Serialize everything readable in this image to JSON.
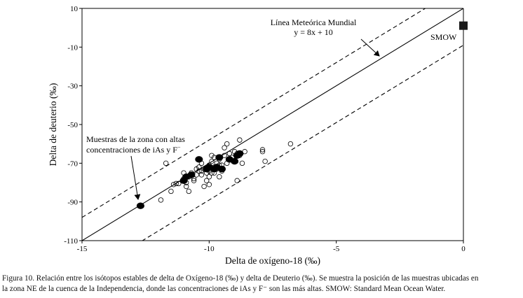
{
  "chart_data": {
    "type": "scatter",
    "xlabel": "Delta de oxígeno-18 (‰)",
    "ylabel": "Delta de deuterio (‰)",
    "xlim": [
      -15,
      0
    ],
    "ylim": [
      -110,
      10
    ],
    "x_ticks": [
      -15,
      -10,
      -5,
      0
    ],
    "x_tick_labels": [
      "-15",
      "-10",
      "-5",
      "0"
    ],
    "y_ticks": [
      10,
      -10,
      -30,
      -50,
      -70,
      -90,
      -110
    ],
    "y_tick_labels": [
      "10",
      "-10",
      "-30",
      "-50",
      "-70",
      "-90",
      "-110"
    ],
    "grid": false,
    "lines": [
      {
        "name": "meteoric",
        "style": "solid",
        "slope": 8,
        "intercept": 10
      },
      {
        "name": "upper-bound",
        "style": "dashed",
        "slope": 8,
        "intercept": 22
      },
      {
        "name": "lower-bound",
        "style": "dashed",
        "slope": 8,
        "intercept": -9
      }
    ],
    "annotations": {
      "lmm_line1": "Línea Meteórica Mundial",
      "lmm_line2": "y = 8x + 10",
      "smow": "SMOW",
      "muestras_line1": "Muestras de la zona con altas",
      "muestras_line2": "concentraciones de iAs y F",
      "muestras_sup": "−"
    },
    "smow_point": {
      "x": 0,
      "y": 0
    },
    "series": [
      {
        "marker": "open-circle",
        "points": [
          [
            -11.7,
            -70
          ],
          [
            -11.4,
            -81
          ],
          [
            -11.5,
            -84.5
          ],
          [
            -11.9,
            -89
          ],
          [
            -11.2,
            -80.5
          ],
          [
            -11.3,
            -80.5
          ],
          [
            -11.0,
            -75
          ],
          [
            -11.0,
            -78
          ],
          [
            -10.9,
            -82
          ],
          [
            -10.9,
            -80
          ],
          [
            -10.8,
            -77
          ],
          [
            -10.8,
            -84.5
          ],
          [
            -10.7,
            -75
          ],
          [
            -10.6,
            -78
          ],
          [
            -10.5,
            -76
          ],
          [
            -10.4,
            -74
          ],
          [
            -10.4,
            -72
          ],
          [
            -10.3,
            -70
          ],
          [
            -10.3,
            -76
          ],
          [
            -10.2,
            -73
          ],
          [
            -10.2,
            -82
          ],
          [
            -10.1,
            -75
          ],
          [
            -10.1,
            -79
          ],
          [
            -10.0,
            -81
          ],
          [
            -10.0,
            -71
          ],
          [
            -10.0,
            -74
          ],
          [
            -9.9,
            -66
          ],
          [
            -9.9,
            -69
          ],
          [
            -9.8,
            -67
          ],
          [
            -9.8,
            -72
          ],
          [
            -9.8,
            -75
          ],
          [
            -9.7,
            -70
          ],
          [
            -9.7,
            -73
          ],
          [
            -9.6,
            -68
          ],
          [
            -9.6,
            -77
          ],
          [
            -9.5,
            -74
          ],
          [
            -9.5,
            -71
          ],
          [
            -9.4,
            -62
          ],
          [
            -9.4,
            -66
          ],
          [
            -9.3,
            -60
          ],
          [
            -9.3,
            -70
          ],
          [
            -9.2,
            -65
          ],
          [
            -9.1,
            -67
          ],
          [
            -9.0,
            -64
          ],
          [
            -8.9,
            -65
          ],
          [
            -8.9,
            -79
          ],
          [
            -8.8,
            -58
          ],
          [
            -8.8,
            -66
          ],
          [
            -8.7,
            -70
          ],
          [
            -8.6,
            -64
          ],
          [
            -7.9,
            -63
          ],
          [
            -7.8,
            -69
          ],
          [
            -7.9,
            -64
          ],
          [
            -6.8,
            -60
          ],
          [
            -10.5,
            -73
          ],
          [
            -10.3,
            -74
          ],
          [
            -10.6,
            -79
          ],
          [
            -10.0,
            -77
          ],
          [
            -9.9,
            -75
          ],
          [
            -9.6,
            -71
          ]
        ]
      },
      {
        "marker": "filled-circle",
        "points": [
          [
            -12.7,
            -92
          ],
          [
            -11.0,
            -79
          ],
          [
            -10.9,
            -77
          ],
          [
            -10.7,
            -76
          ],
          [
            -10.4,
            -68
          ],
          [
            -10.0,
            -72
          ],
          [
            -9.8,
            -73
          ],
          [
            -9.7,
            -72
          ],
          [
            -9.6,
            -67
          ],
          [
            -9.2,
            -68
          ],
          [
            -9.0,
            -69
          ],
          [
            -8.8,
            -65
          ],
          [
            -8.9,
            -66
          ],
          [
            -9.5,
            -73
          ],
          [
            -10.1,
            -73
          ]
        ]
      }
    ]
  },
  "caption": {
    "line1": "Figura 10. Relación entre los isótopos estables de delta de Oxígeno-18 (‰) y delta de Deuterio (‰). Se muestra la posición de las muestras ubicadas en",
    "line2": "la zona NE de la cuenca de la Independencia, donde las concentraciones de iAs y F⁻ son las más altas. SMOW: Standard Mean Ocean Water."
  }
}
